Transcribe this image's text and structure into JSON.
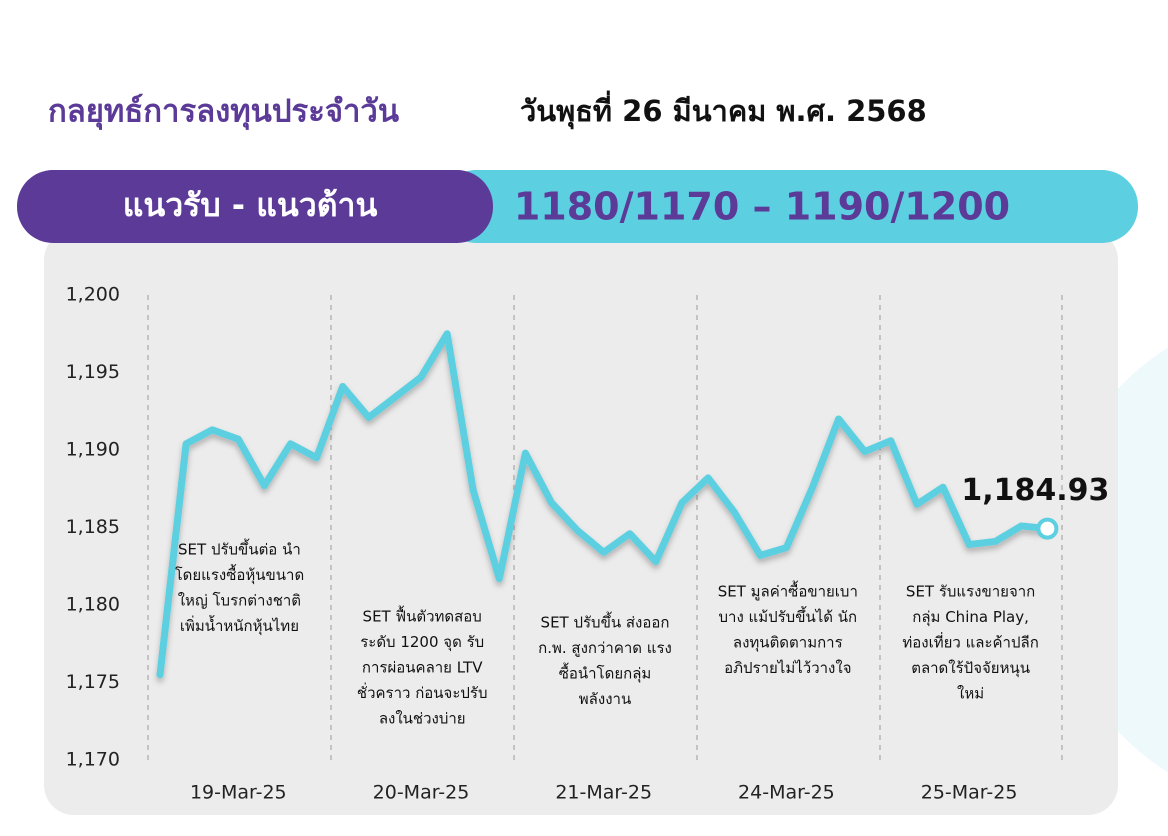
{
  "header": {
    "title": "กลยุทธ์การลงทุนประจำวัน",
    "date": "วันพุธที่ 26 มีนาคม พ.ศ. 2568"
  },
  "banner": {
    "label": "แนวรับ - แนวต้าน",
    "value": "1180/1170 – 1190/1200"
  },
  "chart_data": {
    "type": "line",
    "categories": [
      null,
      null,
      null,
      "19-Mar-25",
      null,
      null,
      null,
      null,
      null,
      null,
      "20-Mar-25",
      null,
      null,
      null,
      null,
      null,
      null,
      "21-Mar-25",
      null,
      null,
      null,
      null,
      null,
      null,
      "24-Mar-25",
      null,
      null,
      null,
      null,
      null,
      null,
      "25-Mar-25",
      null,
      null,
      null
    ],
    "series": [
      {
        "name": "SET",
        "color": "#5ccfe0",
        "values": [
          1175.5,
          1190.4,
          1191.3,
          1190.7,
          1187.7,
          1190.4,
          1189.5,
          1194.1,
          1192.1,
          1193.4,
          1194.7,
          1197.5,
          1187.4,
          1181.7,
          1189.8,
          1186.6,
          1184.8,
          1183.4,
          1184.6,
          1182.8,
          1186.6,
          1188.2,
          1186.0,
          1183.2,
          1183.7,
          1187.6,
          1192.0,
          1189.9,
          1190.6,
          1186.5,
          1187.6,
          1183.9,
          1184.1,
          1185.1,
          1184.93
        ],
        "value_labels": [
          null,
          null,
          null,
          null,
          null,
          null,
          null,
          null,
          null,
          null,
          null,
          null,
          null,
          null,
          null,
          null,
          null,
          null,
          null,
          null,
          null,
          null,
          null,
          null,
          null,
          null,
          null,
          null,
          null,
          null,
          null,
          null,
          null,
          null,
          "1,184.93"
        ]
      }
    ],
    "ylim": [
      1170,
      1200
    ],
    "yticks": [
      {
        "value": 1170,
        "label": "1,170"
      },
      {
        "value": 1175,
        "label": "1,175"
      },
      {
        "value": 1180,
        "label": "1,180"
      },
      {
        "value": 1185,
        "label": "1,185"
      },
      {
        "value": 1190,
        "label": "1,190"
      },
      {
        "value": 1195,
        "label": "1,195"
      },
      {
        "value": 1200,
        "label": "1,200"
      }
    ],
    "annotations": [
      [
        "SET ปรับขึ้นต่อ นำ",
        "โดยแรงซื้อหุ้นขนาด",
        "ใหญ่ โบรกต่างชาติ",
        "เพิ่มน้ำหนักหุ้นไทย"
      ],
      [
        "SET ฟื้นตัวทดสอบ",
        "ระดับ 1200 จุด รับ",
        "การผ่อนคลาย LTV",
        "ชั่วคราว ก่อนจะปรับ",
        "ลงในช่วงบ่าย"
      ],
      [
        "SET ปรับขึ้น ส่งออก",
        "ก.พ. สูงกว่าคาด แรง",
        "ซื้อนำโดยกลุ่ม",
        "พลังงาน"
      ],
      [
        "SET มูลค่าซื้อขายเบา",
        "บาง แม้ปรับขึ้นได้ นัก",
        "ลงทุนติดตามการ",
        "อภิปรายไม่ไว้วางใจ"
      ],
      [
        "SET รับแรงขายจาก",
        "กลุ่ม China Play,",
        "ท่องเที่ยว และค้าปลีก",
        "ตลาดใร้ปัจจัยหนุน",
        "ใหม่"
      ]
    ]
  }
}
